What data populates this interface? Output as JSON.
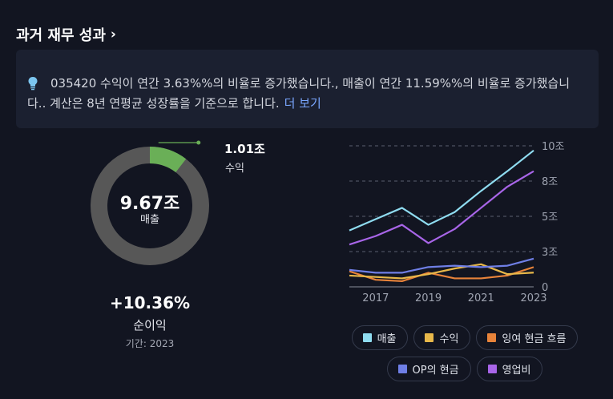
{
  "header": {
    "title": "과거 재무 성과",
    "chevron": "›"
  },
  "info": {
    "text": "035420 수익이 연간 3.63%%의 비율로 증가했습니다., 매출이 연간 11.59%%의 비율로 증가했습니다.. 계산은 8년 연평균 성장률을 기준으로 합니다.",
    "more_link": "더 보기",
    "icon": "lightbulb-icon",
    "icon_color": "#7cc6f0"
  },
  "donut": {
    "center_value": "9.67조",
    "center_label": "매출",
    "revenue_value": "1.01조",
    "revenue_label": "수익",
    "fraction": 0.1044,
    "ring_color": "#575757",
    "segment_color": "#6aaf57"
  },
  "net_income": {
    "value": "+10.36%",
    "label": "순이익",
    "period": "기간: 2023"
  },
  "chart_data": {
    "type": "line",
    "x": [
      2016,
      2017,
      2018,
      2019,
      2020,
      2021,
      2022,
      2023
    ],
    "x_ticks": [
      "2017",
      "2019",
      "2021",
      "2023"
    ],
    "y_ticks": [
      "0",
      "3조",
      "5조",
      "8조",
      "10조"
    ],
    "y_tick_values": [
      0,
      2.5,
      5,
      7.5,
      10
    ],
    "ylim": [
      0,
      10
    ],
    "grid": true,
    "series": [
      {
        "name": "매출",
        "color": "#8fdcf0",
        "values": [
          4.0,
          4.8,
          5.6,
          4.4,
          5.3,
          6.8,
          8.2,
          9.67
        ]
      },
      {
        "name": "수익",
        "color": "#e8b84a",
        "values": [
          0.8,
          0.7,
          0.6,
          0.9,
          1.3,
          1.6,
          0.9,
          1.01
        ]
      },
      {
        "name": "잉여 현금 흐름",
        "color": "#e8833a",
        "values": [
          1.1,
          0.5,
          0.4,
          1.0,
          0.6,
          0.6,
          0.8,
          1.4
        ]
      },
      {
        "name": "OP의 현금",
        "color": "#6f7fe6",
        "values": [
          1.2,
          1.0,
          1.0,
          1.4,
          1.5,
          1.4,
          1.5,
          2.0
        ]
      },
      {
        "name": "영업비",
        "color": "#a865e8",
        "values": [
          3.0,
          3.6,
          4.4,
          3.1,
          4.1,
          5.6,
          7.1,
          8.2
        ]
      }
    ]
  },
  "legend": {
    "row1": [
      {
        "label": "매출",
        "color": "#8fdcf0"
      },
      {
        "label": "수익",
        "color": "#e8b84a"
      },
      {
        "label": "잉여 현금 흐름",
        "color": "#e8833a"
      }
    ],
    "row2": [
      {
        "label": "OP의 현금",
        "color": "#6f7fe6"
      },
      {
        "label": "영업비",
        "color": "#a865e8"
      }
    ]
  }
}
